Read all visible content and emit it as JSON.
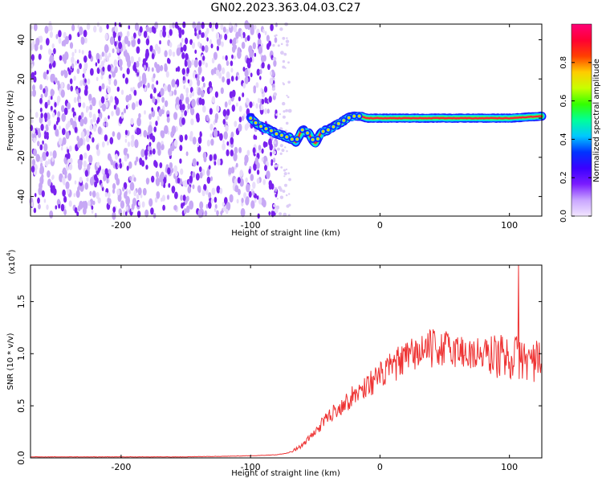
{
  "figure_title": "GN02.2023.363.04.03.C27",
  "chart_data": [
    {
      "type": "heatmap",
      "title": "GN02.2023.363.04.03.C27",
      "xlabel": "Height of straight line (km)",
      "ylabel": "Frequency (Hz)",
      "xlim": [
        -270,
        125
      ],
      "ylim": [
        -50,
        48
      ],
      "xticks": [
        -200,
        -100,
        0,
        100
      ],
      "yticks": [
        -40,
        -20,
        0,
        20,
        40
      ],
      "colorbar": {
        "label": "Normalized spectral amplitude",
        "range": [
          0,
          1
        ],
        "ticks": [
          "0.0",
          "0.2",
          "0.4",
          "0.6",
          "0.8"
        ],
        "colormap": [
          "#f2e6ff",
          "#c9a6ff",
          "#7a1cff",
          "#3a00ff",
          "#0033ff",
          "#00c8ff",
          "#00ff9a",
          "#33ff00",
          "#c8ff00",
          "#ffcc00",
          "#ff4000",
          "#ff0033",
          "#ff0077"
        ]
      },
      "noise_region_x": [
        -270,
        -80
      ],
      "signal_track": {
        "x": [
          -100,
          -95,
          -90,
          -85,
          -80,
          -75,
          -70,
          -65,
          -60,
          -55,
          -50,
          -45,
          -40,
          -35,
          -30,
          -25,
          -20,
          -15,
          -10,
          -5,
          0,
          20,
          40,
          60,
          80,
          100,
          125
        ],
        "frequency_hz": [
          0,
          -3,
          -5,
          -6,
          -8,
          -9,
          -10,
          -12,
          -6,
          -8,
          -13,
          -7,
          -6,
          -4,
          -2,
          0,
          1,
          1,
          0,
          0,
          0,
          0,
          0,
          0,
          0,
          0,
          1
        ]
      }
    },
    {
      "type": "line",
      "xlabel": "Height of straight line (km)",
      "ylabel": "SNR (10 * v/v)",
      "y_scale_label": "(x10",
      "y_scale_exponent": "4",
      "xlim": [
        -270,
        125
      ],
      "ylim": [
        0,
        1.85
      ],
      "xticks": [
        -200,
        -100,
        0,
        100
      ],
      "yticks": [
        "0.0",
        "0.5",
        "1.0",
        "1.5"
      ],
      "color": "#ee3333",
      "series": [
        {
          "x": [
            -270,
            -250,
            -200,
            -150,
            -100,
            -80,
            -70,
            -60,
            -50,
            -40,
            -30,
            -20,
            -10,
            0,
            10,
            20,
            30,
            40,
            50,
            60,
            70,
            80,
            90,
            100,
            110,
            120,
            125
          ],
          "values": [
            0.01,
            0.01,
            0.01,
            0.01,
            0.02,
            0.03,
            0.05,
            0.12,
            0.25,
            0.4,
            0.5,
            0.6,
            0.7,
            0.78,
            0.88,
            0.95,
            1.02,
            1.05,
            1.05,
            1.03,
            1.0,
            0.99,
            0.98,
            0.97,
            0.95,
            0.93,
            0.9
          ]
        }
      ],
      "spike": {
        "x": 107,
        "value": 1.85
      }
    }
  ]
}
